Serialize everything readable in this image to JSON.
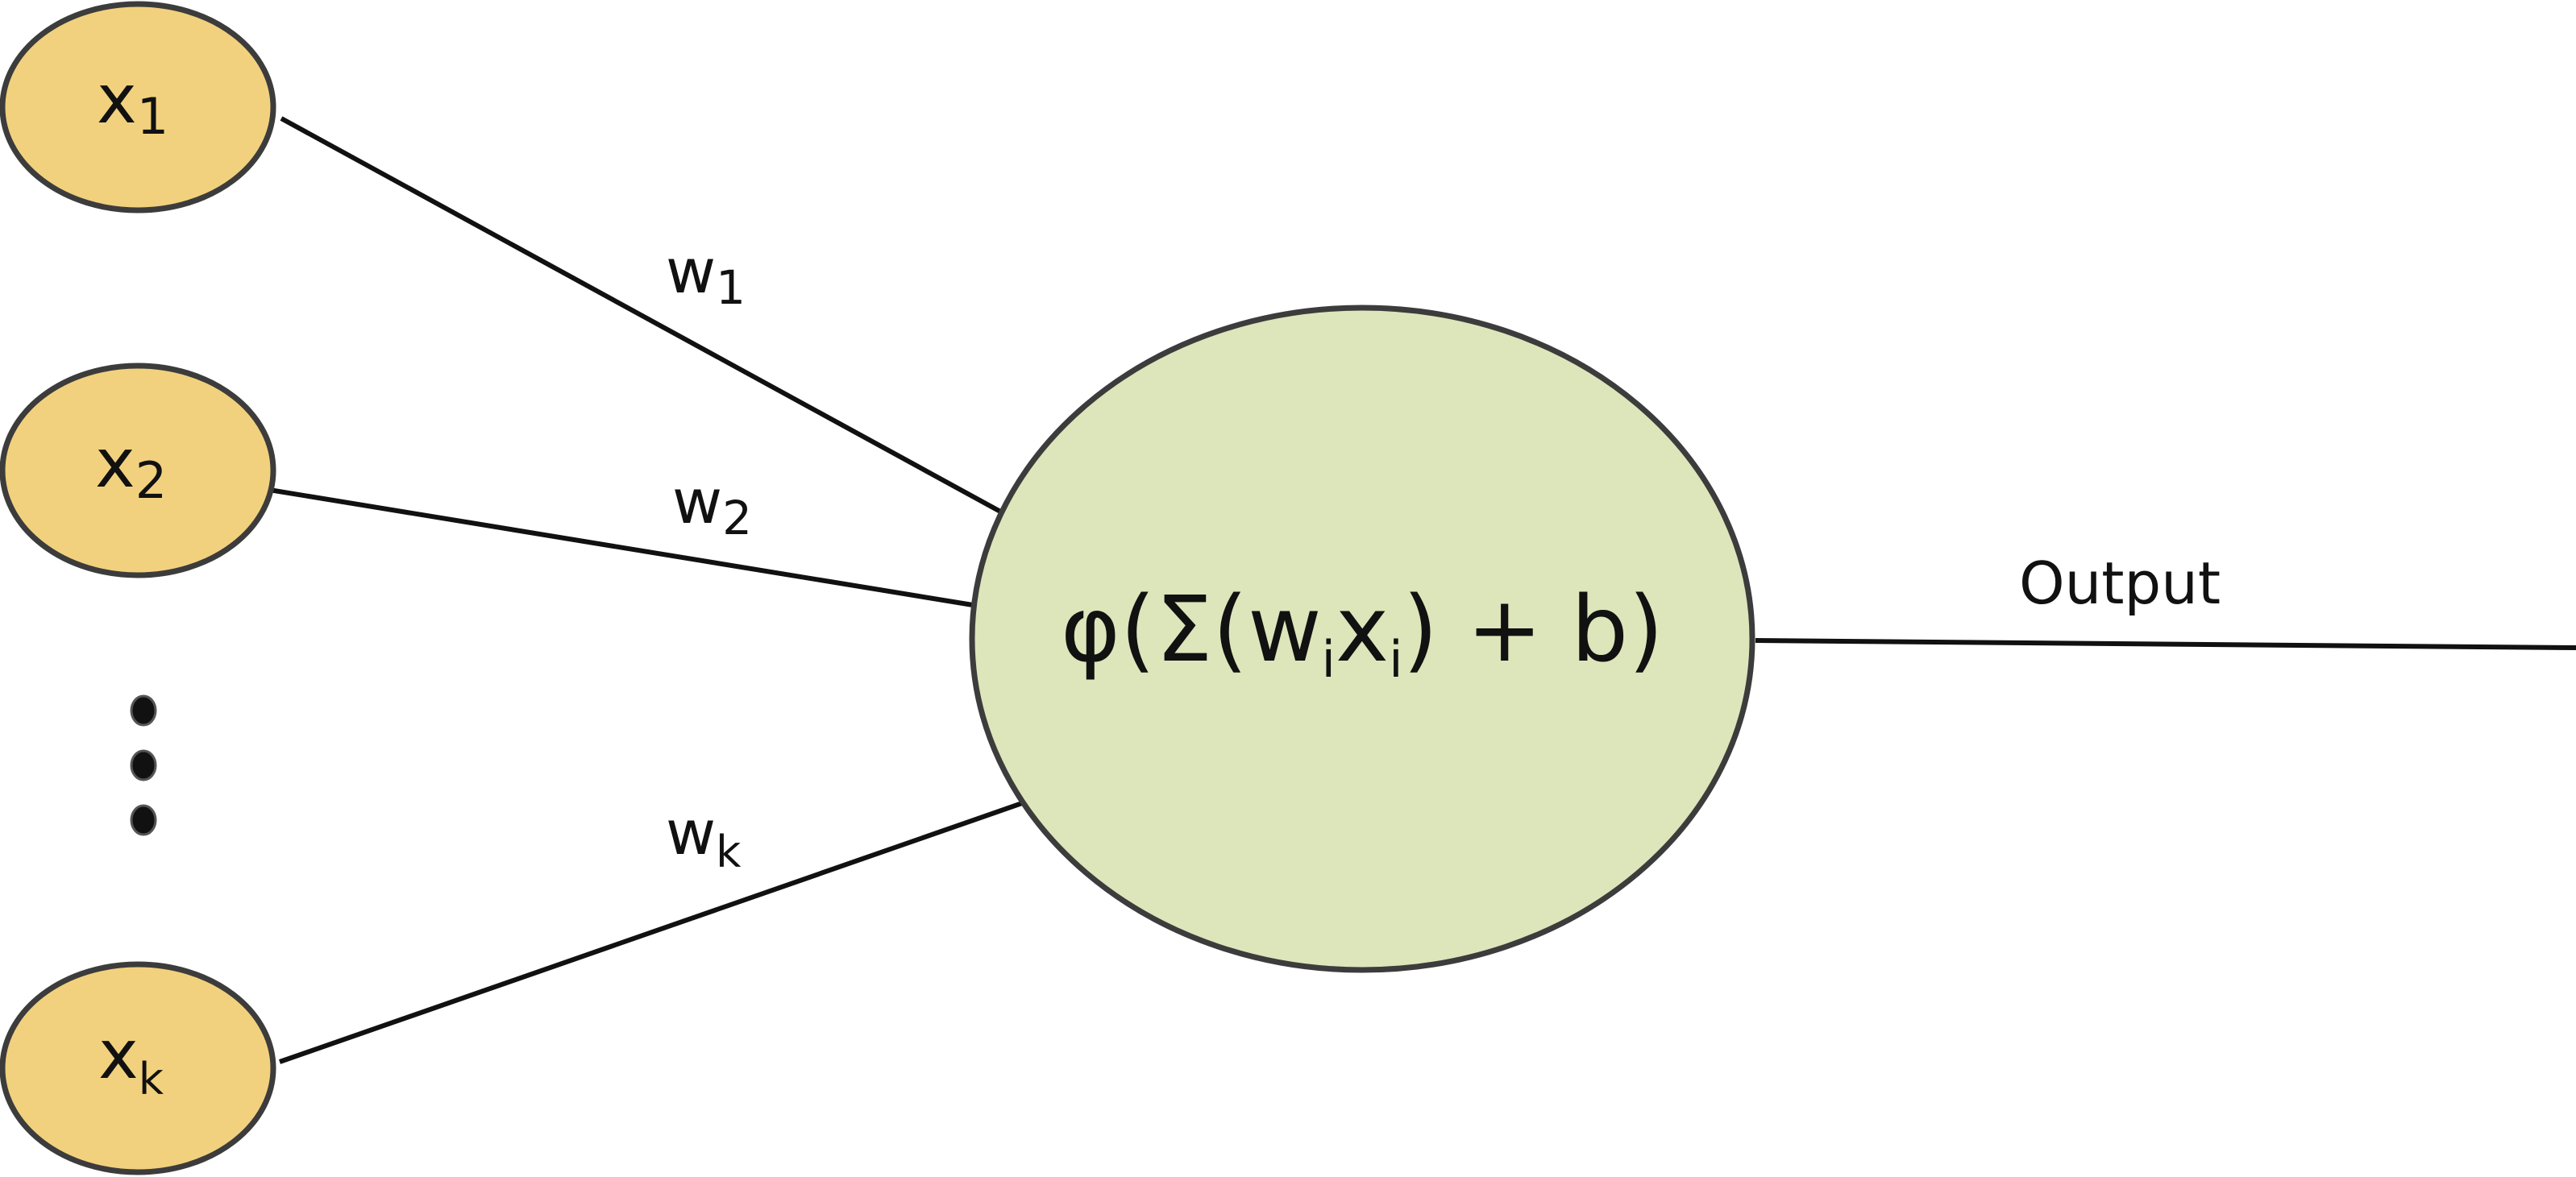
{
  "colors": {
    "input_fill": "#f2d17e",
    "neuron_fill": "#dde5bb",
    "stroke": "#3c3c3c",
    "line": "#111111",
    "ellipsis_dot": "#111111"
  },
  "inputs": [
    {
      "base": "x",
      "sub": "1"
    },
    {
      "base": "x",
      "sub": "2"
    },
    {
      "base": "x",
      "sub": "k"
    }
  ],
  "ellipsis": "vertical-dots",
  "weights": [
    {
      "base": "w",
      "sub": "1"
    },
    {
      "base": "w",
      "sub": "2"
    },
    {
      "base": "w",
      "sub": "k"
    }
  ],
  "neuron": {
    "prefix": "φ(Σ(w",
    "sub_i1": "i",
    "middle": "x",
    "sub_i2": "i",
    "suffix": ") + b)"
  },
  "output": {
    "label": "Output"
  }
}
